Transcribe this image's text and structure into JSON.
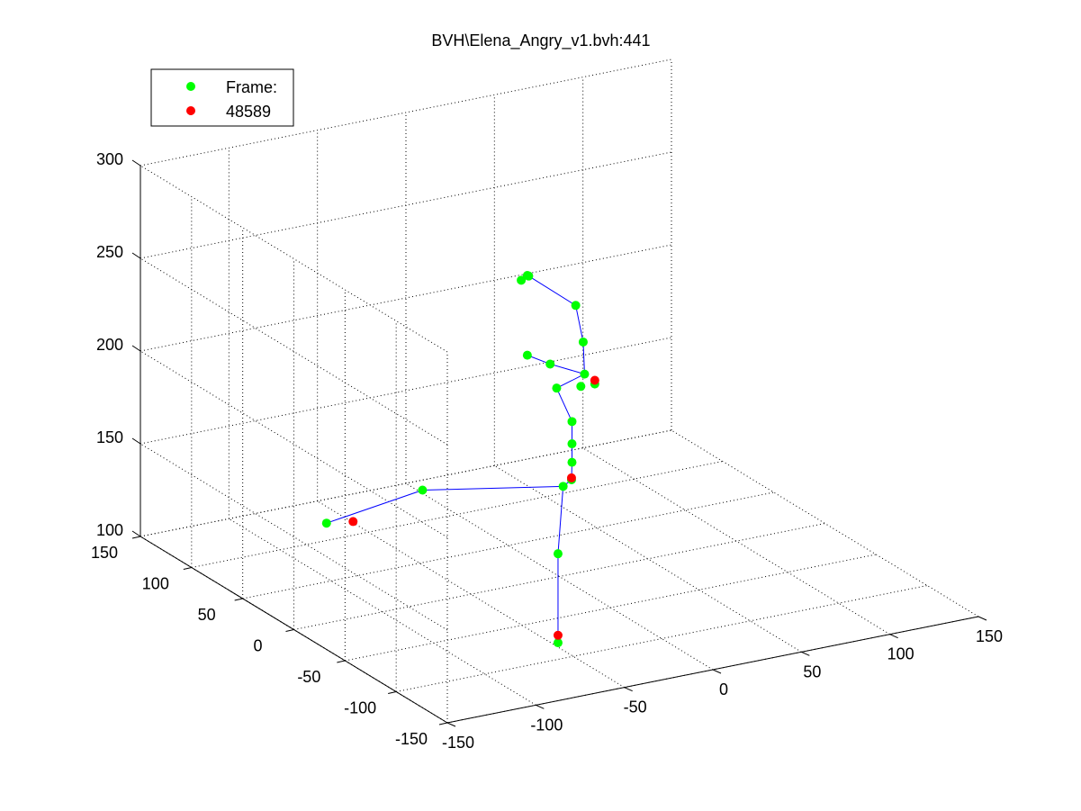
{
  "chart_data": {
    "type": "scatter",
    "title": "BVH\\Elena_Angry_v1.bvh:441",
    "axes": {
      "x_ticks": [
        "-150",
        "-100",
        "-50",
        "0",
        "50",
        "100",
        "150"
      ],
      "y_ticks": [
        "-150",
        "-100",
        "-50",
        "0",
        "50",
        "100",
        "150"
      ],
      "z_ticks": [
        "100",
        "150",
        "200",
        "250",
        "300"
      ],
      "xlim": [
        -150,
        150
      ],
      "ylim": [
        -150,
        150
      ],
      "zlim": [
        100,
        300
      ],
      "grid": true
    },
    "legend": {
      "position": "top-left",
      "entries": [
        {
          "label": "Frame:",
          "color": "#00ff00"
        },
        {
          "label": "48589",
          "color": "#ff0000"
        }
      ]
    },
    "colors": {
      "joint": "#00ff00",
      "highlight": "#ff0000",
      "bone": "#0000ff"
    },
    "series": [
      {
        "marker_color": "#00ff00",
        "points": [
          {
            "x": -10,
            "y": 20,
            "z": 255
          },
          {
            "x": 0,
            "y": 30,
            "z": 252
          },
          {
            "x": 5,
            "y": 40,
            "z": 248
          },
          {
            "x": 15,
            "y": 10,
            "z": 240
          },
          {
            "x": 25,
            "y": 20,
            "z": 215
          },
          {
            "x": 5,
            "y": 40,
            "z": 205
          },
          {
            "x": 15,
            "y": 35,
            "z": 200
          },
          {
            "x": 20,
            "y": 0,
            "z": 200
          },
          {
            "x": 20,
            "y": 10,
            "z": 202
          },
          {
            "x": 15,
            "y": 5,
            "z": 198
          },
          {
            "x": 10,
            "y": 20,
            "z": 193
          },
          {
            "x": 10,
            "y": 5,
            "z": 180
          },
          {
            "x": 10,
            "y": 5,
            "z": 168
          },
          {
            "x": 10,
            "y": 5,
            "z": 158
          },
          {
            "x": 8,
            "y": 2,
            "z": 150
          },
          {
            "x": 5,
            "y": 5,
            "z": 146
          },
          {
            "x": -60,
            "y": 30,
            "z": 148
          },
          {
            "x": -120,
            "y": 20,
            "z": 145
          },
          {
            "x": 5,
            "y": 10,
            "z": 108
          },
          {
            "x": 5,
            "y": 10,
            "z": 60
          }
        ]
      },
      {
        "marker_color": "#ff0000",
        "points": [
          {
            "x": 20,
            "y": 0,
            "z": 202
          },
          {
            "x": 8,
            "y": 2,
            "z": 151
          },
          {
            "x": -105,
            "y": 20,
            "z": 143
          },
          {
            "x": 5,
            "y": 10,
            "z": 64
          }
        ]
      }
    ],
    "bones": [
      [
        0,
        1
      ],
      [
        1,
        3
      ],
      [
        3,
        4
      ],
      [
        4,
        8
      ],
      [
        5,
        6
      ],
      [
        6,
        8
      ],
      [
        8,
        10
      ],
      [
        10,
        11
      ],
      [
        11,
        12
      ],
      [
        12,
        13
      ],
      [
        13,
        14
      ],
      [
        14,
        15
      ],
      [
        15,
        16
      ],
      [
        16,
        17
      ],
      [
        15,
        18
      ],
      [
        18,
        19
      ]
    ]
  }
}
